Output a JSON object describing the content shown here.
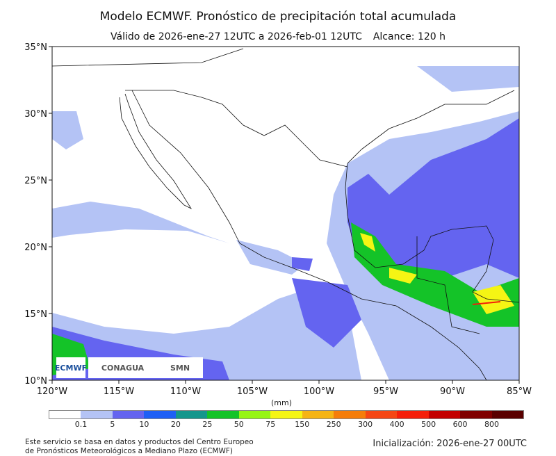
{
  "title": "Modelo ECMWF. Pronóstico de precipitación total acumulada",
  "subtitle": {
    "valid": "Válido de 2026-ene-27 12UTC a 2026-feb-01 12UTC",
    "range": "Alcance: 120 h"
  },
  "map": {
    "lat_labels": [
      "35°N",
      "30°N",
      "25°N",
      "20°N",
      "15°N",
      "10°N"
    ],
    "lon_labels": [
      "120°W",
      "115°W",
      "110°W",
      "105°W",
      "100°W",
      "95°W",
      "90°W",
      "85°W"
    ],
    "extent": {
      "lon": [
        -120,
        -85
      ],
      "lat": [
        10,
        35
      ]
    }
  },
  "colorbar": {
    "unit": "(mm)",
    "levels": [
      "0.1",
      "5",
      "10",
      "20",
      "25",
      "50",
      "75",
      "150",
      "250",
      "300",
      "400",
      "500",
      "600",
      "800"
    ],
    "colors": [
      "#ffffff",
      "#b4c3f5",
      "#6464f0",
      "#1e5ff5",
      "#14968c",
      "#14c328",
      "#96f514",
      "#f5f514",
      "#f5b414",
      "#f57d0a",
      "#f54614",
      "#f51e0a",
      "#c30000",
      "#800000",
      "#5a0000"
    ]
  },
  "logos": {
    "ecmwf": "ECMWF",
    "conagua": "CONAGUA",
    "smn": "SMN"
  },
  "footer": {
    "line1": "Este servicio se basa en datos y productos del Centro Europeo",
    "line2": "de Pronósticos Meteorológicos a Mediano Plazo (ECMWF)",
    "init": "Inicialización: 2026-ene-27 00UTC"
  }
}
